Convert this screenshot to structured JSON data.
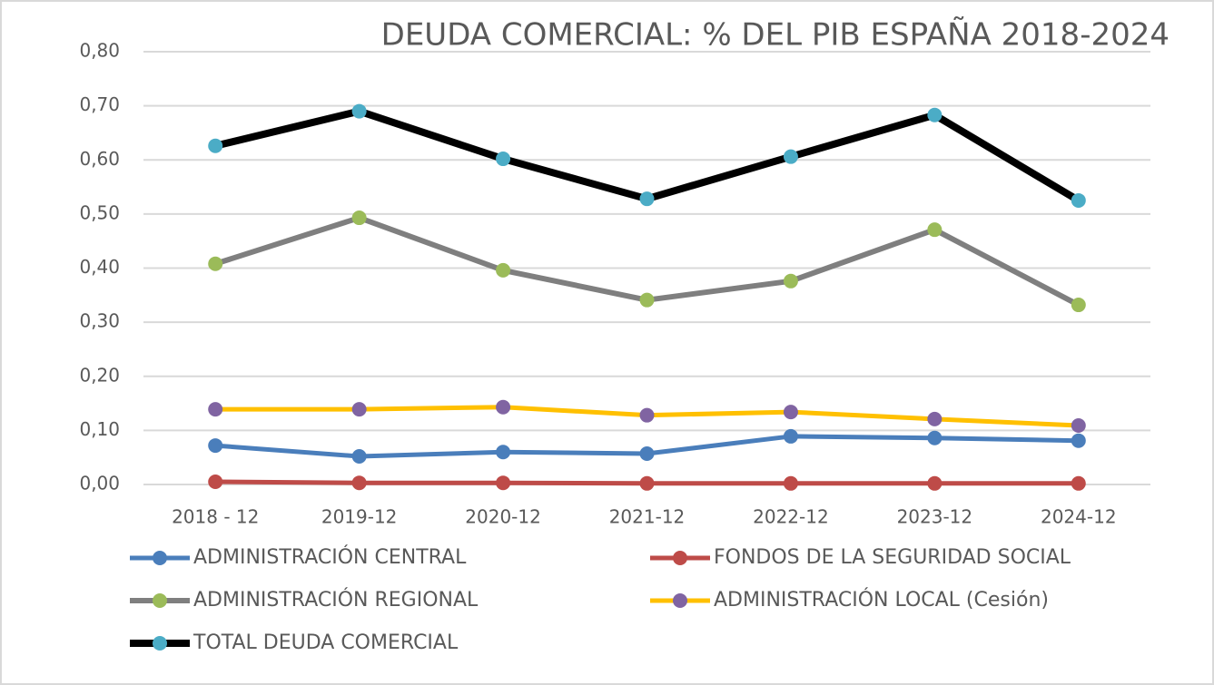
{
  "chart_data": {
    "type": "line",
    "title": "DEUDA COMERCIAL: % DEL PIB ESPAÑA 2018-2024",
    "categories": [
      "2018 - 12",
      "2019-12",
      "2020-12",
      "2021-12",
      "2022-12",
      "2023-12",
      "2024-12"
    ],
    "series": [
      {
        "name": "ADMINISTRACIÓN CENTRAL",
        "color": "#4a7ebb",
        "marker_color": "#4a7ebb",
        "values": [
          0.072,
          0.052,
          0.06,
          0.057,
          0.089,
          0.086,
          0.081
        ]
      },
      {
        "name": "FONDOS DE LA SEGURIDAD SOCIAL",
        "color": "#be4b48",
        "marker_color": "#be4b48",
        "values": [
          0.005,
          0.003,
          0.003,
          0.002,
          0.002,
          0.002,
          0.002
        ]
      },
      {
        "name": "ADMINISTRACIÓN REGIONAL",
        "color": "#7f7f7f",
        "marker_color": "#9bbb59",
        "values": [
          0.408,
          0.493,
          0.396,
          0.341,
          0.376,
          0.471,
          0.332
        ]
      },
      {
        "name": "ADMINISTRACIÓN LOCAL (Cesión)",
        "color": "#ffc000",
        "marker_color": "#8064a2",
        "values": [
          0.139,
          0.139,
          0.143,
          0.128,
          0.134,
          0.121,
          0.109
        ]
      },
      {
        "name": "TOTAL DEUDA COMERCIAL",
        "color": "#000000",
        "marker_color": "#4bacc6",
        "values": [
          0.626,
          0.69,
          0.602,
          0.528,
          0.606,
          0.683,
          0.525
        ]
      }
    ],
    "ylim": [
      0,
      0.8
    ],
    "yticks": [
      {
        "value": 0,
        "label": "0,00"
      },
      {
        "value": 0.1,
        "label": "0,10"
      },
      {
        "value": 0.2,
        "label": "0,20"
      },
      {
        "value": 0.3,
        "label": "0,30"
      },
      {
        "value": 0.4,
        "label": "0,40"
      },
      {
        "value": 0.5,
        "label": "0,50"
      },
      {
        "value": 0.6,
        "label": "0,60"
      },
      {
        "value": 0.7,
        "label": "0,70"
      },
      {
        "value": 0.8,
        "label": "0,80"
      }
    ],
    "grid": true
  }
}
